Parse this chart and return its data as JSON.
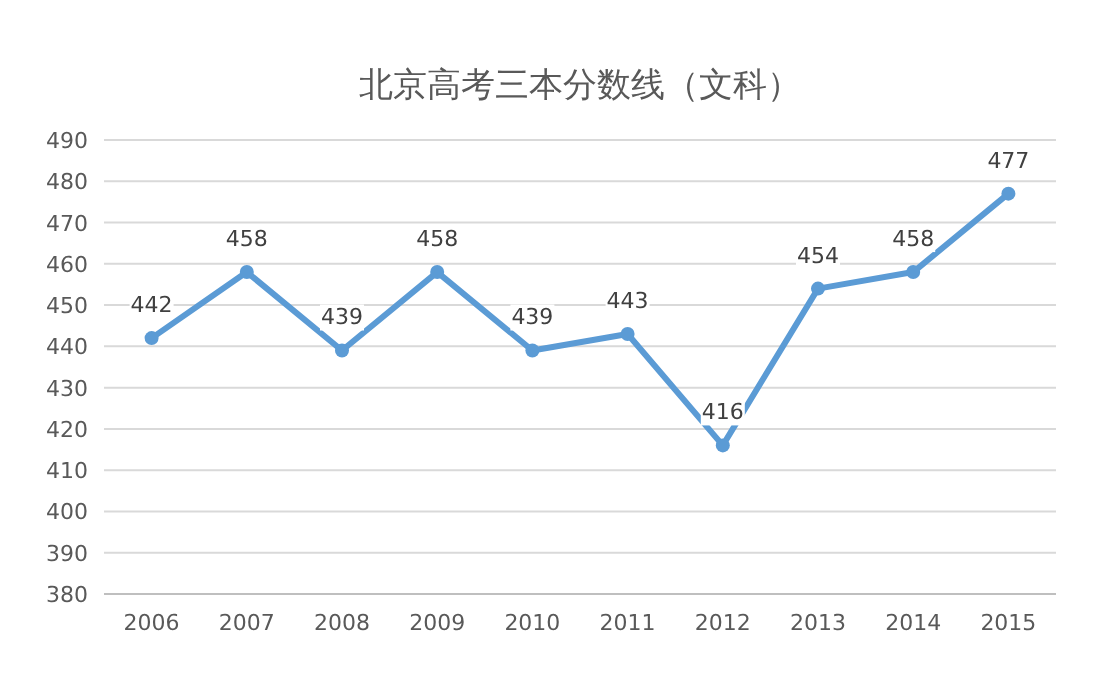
{
  "chart_data": {
    "type": "line",
    "title": "北京高考三本分数线（文科）",
    "categories": [
      "2006",
      "2007",
      "2008",
      "2009",
      "2010",
      "2011",
      "2012",
      "2013",
      "2014",
      "2015"
    ],
    "values": [
      442,
      458,
      439,
      458,
      439,
      443,
      416,
      454,
      458,
      477
    ],
    "color": "#5b9bd5",
    "ylim": [
      380,
      490
    ],
    "yticks": [
      380,
      390,
      400,
      410,
      420,
      430,
      440,
      450,
      460,
      470,
      480,
      490
    ],
    "grid": "y",
    "marker": "circle",
    "data_labels": true,
    "line_style": "solid"
  }
}
